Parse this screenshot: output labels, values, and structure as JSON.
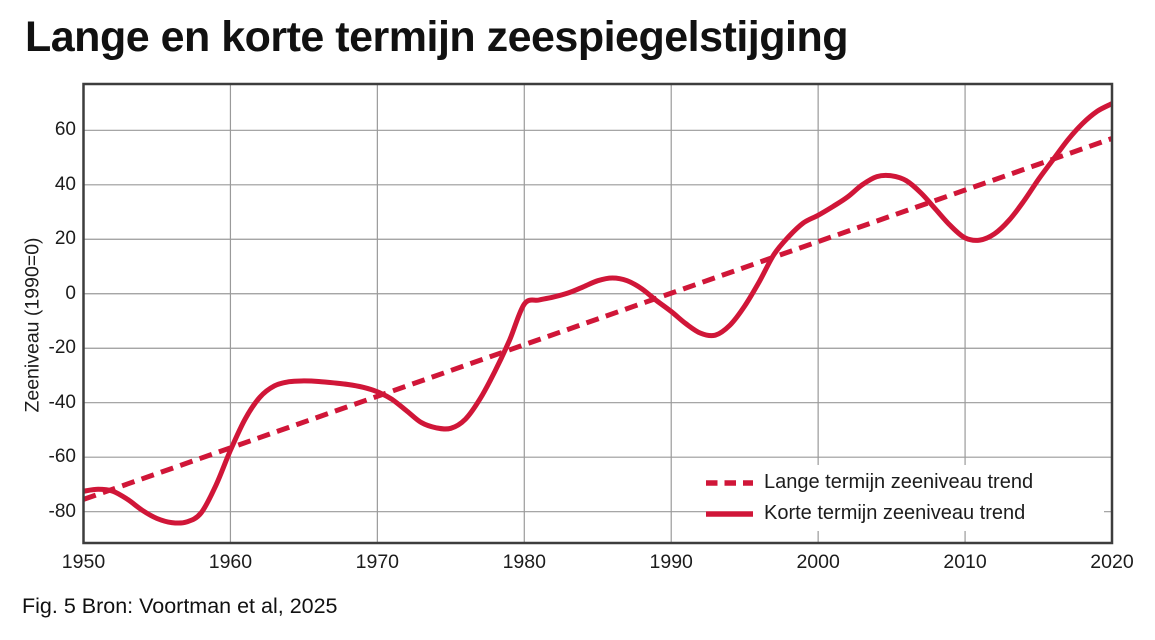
{
  "title": "Lange en korte termijn zeespiegelstijging",
  "caption": "Fig. 5 Bron: Voortman et al, 2025",
  "colors": {
    "line_red": "#d01638",
    "grid_gray": "#9a9a9a",
    "axis_border": "#3d3d3d",
    "text_dark": "#1c1c1c"
  },
  "chart_data": {
    "type": "line",
    "title": "Lange en korte termijn zeespiegelstijging",
    "xlabel": "",
    "ylabel": "Zeeniveau (1990=0)",
    "xlim": [
      1950,
      2020
    ],
    "ylim": [
      -91.5,
      77
    ],
    "x_ticks": [
      1950,
      1960,
      1970,
      1980,
      1990,
      2000,
      2010,
      2020
    ],
    "y_ticks": [
      60,
      40,
      20,
      0,
      -20,
      -40,
      -60,
      -80
    ],
    "grid": true,
    "legend_position": "lower right (inside plot)",
    "series": [
      {
        "name": "Lange termijn zeeniveau trend",
        "style": "dashed",
        "x": [
          1950,
          2020
        ],
        "y": [
          -75.5,
          57
        ]
      },
      {
        "name": "Korte termijn zeeniveau trend",
        "style": "solid",
        "x": [
          1950,
          1951,
          1952,
          1953,
          1954,
          1955,
          1956,
          1957,
          1958,
          1959,
          1960,
          1961,
          1962,
          1963,
          1964,
          1965,
          1966,
          1967,
          1968,
          1969,
          1970,
          1971,
          1972,
          1973,
          1974,
          1975,
          1976,
          1977,
          1978,
          1979,
          1980,
          1981,
          1982,
          1983,
          1984,
          1985,
          1986,
          1987,
          1988,
          1989,
          1990,
          1991,
          1992,
          1993,
          1994,
          1995,
          1996,
          1997,
          1998,
          1999,
          2000,
          2001,
          2002,
          2003,
          2004,
          2005,
          2006,
          2007,
          2008,
          2009,
          2010,
          2011,
          2012,
          2013,
          2014,
          2015,
          2016,
          2017,
          2018,
          2019,
          2020
        ],
        "y": [
          -72.5,
          -71.8,
          -72.5,
          -75.5,
          -79.5,
          -82.5,
          -84,
          -83.8,
          -80.5,
          -70.5,
          -57.5,
          -46,
          -38,
          -33.8,
          -32.3,
          -32,
          -32.2,
          -32.7,
          -33.3,
          -34.3,
          -36,
          -38.8,
          -43,
          -47.3,
          -49.2,
          -49.4,
          -46,
          -38.5,
          -28.5,
          -17,
          -3.8,
          -2.3,
          -1.2,
          0.3,
          2.5,
          4.8,
          5.8,
          4.8,
          1.8,
          -2.5,
          -6.5,
          -11,
          -14.5,
          -15.2,
          -11.5,
          -4.5,
          4.5,
          14.5,
          21,
          26,
          28.8,
          32,
          35.5,
          40,
          43,
          43.3,
          41.5,
          37,
          31,
          25,
          20.5,
          19.7,
          22,
          27,
          34,
          42,
          49.3,
          56.5,
          62.5,
          67,
          69.8
        ]
      }
    ]
  }
}
